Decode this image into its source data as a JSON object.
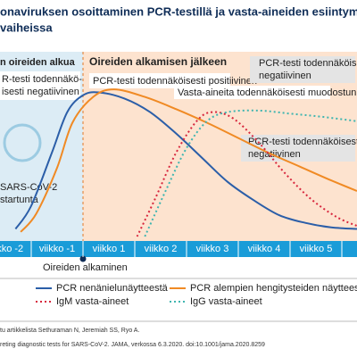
{
  "chart_data": {
    "type": "line",
    "title": [
      "onaviruksen osoittaminen PCR-testillä ja vasta-aineiden esiintyminen infektion",
      "vaiheissa"
    ],
    "xlim": [
      -1.6,
      5.3
    ],
    "ylim": [
      0,
      100
    ],
    "series": [
      {
        "name": "PCR nenänielunäytteestä",
        "color": "#2b5ea8",
        "style": "solid",
        "x": [
          -1.3,
          -1,
          -0.6,
          -0.3,
          0,
          0.3,
          0.8,
          1.3,
          1.8,
          2.3,
          2.8,
          3.3,
          3.8,
          4.3,
          4.8,
          5.3
        ],
        "values": [
          5,
          20,
          55,
          82,
          93,
          95,
          91,
          82,
          68,
          52,
          36,
          24,
          14,
          9,
          6,
          5
        ]
      },
      {
        "name": "PCR alempien hengitysteiden näytteestä",
        "color": "#f08a24",
        "style": "solid",
        "x": [
          -1.2,
          -0.9,
          -0.5,
          -0.2,
          0.2,
          0.6,
          1.2,
          1.8,
          2.4,
          3,
          3.6,
          4.2,
          4.8,
          5.3
        ],
        "values": [
          3,
          15,
          45,
          75,
          92,
          97,
          92,
          84,
          75,
          65,
          55,
          46,
          37,
          30
        ]
      },
      {
        "name": "IgM vasta-aineet",
        "color": "#d7263d",
        "style": "dotted",
        "x": [
          1.05,
          1.4,
          1.8,
          2.2,
          2.5,
          2.9,
          3.4,
          3.9,
          4.4,
          4.9,
          5.3
        ],
        "values": [
          0,
          25,
          55,
          76,
          82,
          78,
          62,
          42,
          25,
          13,
          7
        ]
      },
      {
        "name": "IgG vasta-aineet",
        "color": "#3fb5b0",
        "style": "dotted",
        "x": [
          1.2,
          1.6,
          2,
          2.4,
          2.8,
          3.4,
          4,
          4.6,
          5.3
        ],
        "values": [
          0,
          30,
          58,
          76,
          82,
          83,
          81,
          79,
          76
        ]
      }
    ],
    "week_labels": [
      "viikko -2",
      "viikko -1",
      "viikko 1",
      "viikko 2",
      "viikko 3",
      "viikko 4",
      "viikko 5",
      "viikk"
    ],
    "annotations": {
      "phase_before": "n oireiden alkua",
      "phase_after": "Oireiden alkamisen jälkeen",
      "pcr_negative_before": [
        "R-testi todennäkö-",
        "isesti negatiivinen"
      ],
      "pcr_positive": "PCR-testi todennäköisesti positiivinen",
      "pcr_negative_top": [
        "PCR-testi todennäköisesti",
        "negatiivinen"
      ],
      "pcr_negative_mid": [
        "PCR-testi todennäköisesti",
        "negatiivinen"
      ],
      "antibodies": "Vasta-aineita todennäköisesti muodostunut",
      "infection": [
        "SARS-CoV-2",
        "startunta"
      ],
      "onset": "Oireiden alkaminen"
    },
    "source": [
      "tu artikkelista Sethuraman N, Jeremiah SS, Ryo A.",
      "reting diagnostic tests for SARS-CoV-2. JAMA, verkossa 6.3.2020. doi:10.1001/jama.2020.8259"
    ]
  }
}
